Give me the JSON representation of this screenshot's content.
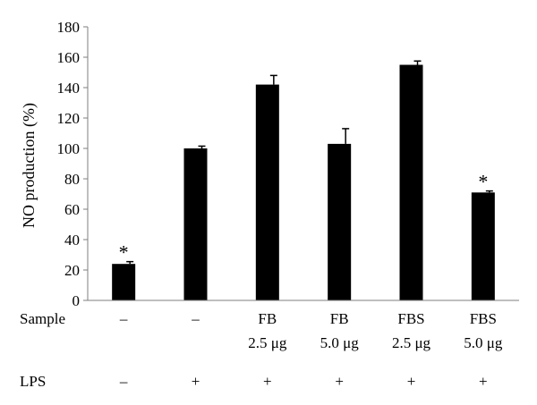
{
  "chart_data": {
    "type": "bar",
    "ylabel": "NO production (%)",
    "ylim": [
      0,
      180
    ],
    "yticks": [
      0,
      20,
      40,
      60,
      80,
      100,
      120,
      140,
      160,
      180
    ],
    "grid": false,
    "legend": "none",
    "bar_color": "#000000",
    "values": [
      24,
      100,
      142,
      103,
      155,
      71
    ],
    "errors": [
      1.5,
      1.5,
      6,
      10,
      2.5,
      1
    ],
    "markers": [
      "*",
      "",
      "",
      "",
      "",
      "*"
    ],
    "sample_label": "Sample",
    "sample_line1": [
      "–",
      "–",
      "FB",
      "FB",
      "FBS",
      "FBS"
    ],
    "sample_line2": [
      "",
      "",
      "2.5 μg",
      "5.0 μg",
      "2.5 μg",
      "5.0 μg"
    ],
    "lps_label": "LPS",
    "lps": [
      "–",
      "+",
      "+",
      "+",
      "+",
      "+"
    ]
  }
}
